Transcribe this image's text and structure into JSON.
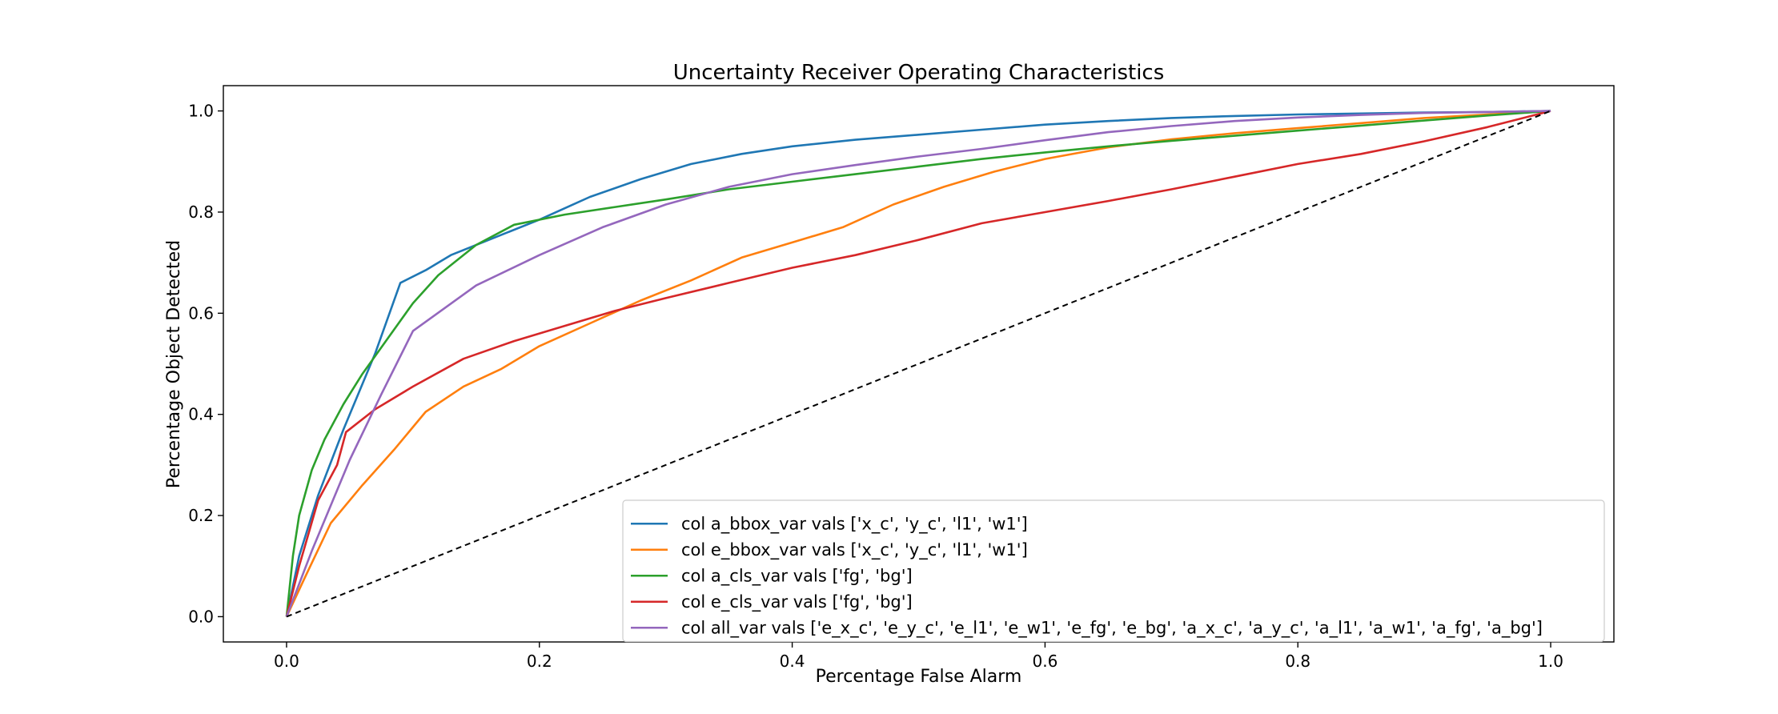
{
  "chart_data": {
    "type": "line",
    "title": "Uncertainty Receiver Operating Characteristics",
    "xlabel": "Percentage False Alarm",
    "ylabel": "Percentage Object Detected",
    "xlim": [
      -0.05,
      1.05
    ],
    "ylim": [
      -0.05,
      1.05
    ],
    "xticks": [
      0.0,
      0.2,
      0.4,
      0.6,
      0.8,
      1.0
    ],
    "yticks": [
      0.0,
      0.2,
      0.4,
      0.6,
      0.8,
      1.0
    ],
    "xtick_labels": [
      "0.0",
      "0.2",
      "0.4",
      "0.6",
      "0.8",
      "1.0"
    ],
    "ytick_labels": [
      "0.0",
      "0.2",
      "0.4",
      "0.6",
      "0.8",
      "1.0"
    ],
    "grid": false,
    "legend_position": "lower-right",
    "series": [
      {
        "name": "col a_bbox_var vals ['x_c', 'y_c', 'l1', 'w1']",
        "color": "#1f77b4",
        "x": [
          0.0,
          0.01,
          0.025,
          0.045,
          0.07,
          0.09,
          0.11,
          0.13,
          0.16,
          0.2,
          0.24,
          0.28,
          0.32,
          0.36,
          0.4,
          0.45,
          0.5,
          0.55,
          0.6,
          0.65,
          0.7,
          0.75,
          0.8,
          0.85,
          0.9,
          0.95,
          1.0
        ],
        "y": [
          0.0,
          0.12,
          0.24,
          0.37,
          0.52,
          0.66,
          0.685,
          0.715,
          0.745,
          0.785,
          0.83,
          0.865,
          0.895,
          0.915,
          0.93,
          0.943,
          0.953,
          0.963,
          0.973,
          0.98,
          0.986,
          0.99,
          0.993,
          0.995,
          0.997,
          0.998,
          1.0
        ]
      },
      {
        "name": "col e_bbox_var vals ['x_c', 'y_c', 'l1', 'w1']",
        "color": "#ff7f0e",
        "x": [
          0.0,
          0.015,
          0.035,
          0.06,
          0.085,
          0.11,
          0.14,
          0.17,
          0.2,
          0.24,
          0.28,
          0.32,
          0.36,
          0.4,
          0.44,
          0.48,
          0.52,
          0.56,
          0.6,
          0.65,
          0.7,
          0.75,
          0.8,
          0.85,
          0.9,
          0.95,
          1.0
        ],
        "y": [
          0.0,
          0.08,
          0.185,
          0.26,
          0.33,
          0.405,
          0.455,
          0.49,
          0.535,
          0.58,
          0.625,
          0.665,
          0.71,
          0.74,
          0.77,
          0.815,
          0.85,
          0.88,
          0.905,
          0.928,
          0.944,
          0.956,
          0.966,
          0.976,
          0.986,
          0.993,
          1.0
        ]
      },
      {
        "name": "col a_cls_var vals ['fg', 'bg']",
        "color": "#2ca02c",
        "x": [
          0.0,
          0.005,
          0.01,
          0.02,
          0.03,
          0.045,
          0.06,
          0.08,
          0.1,
          0.12,
          0.15,
          0.18,
          0.22,
          0.26,
          0.3,
          0.35,
          0.4,
          0.45,
          0.5,
          0.55,
          0.6,
          0.65,
          0.7,
          0.75,
          0.8,
          0.85,
          0.9,
          0.95,
          1.0
        ],
        "y": [
          0.0,
          0.12,
          0.2,
          0.29,
          0.35,
          0.42,
          0.48,
          0.55,
          0.62,
          0.675,
          0.735,
          0.775,
          0.795,
          0.81,
          0.825,
          0.845,
          0.86,
          0.875,
          0.89,
          0.905,
          0.918,
          0.93,
          0.941,
          0.951,
          0.961,
          0.971,
          0.981,
          0.991,
          1.0
        ]
      },
      {
        "name": "col e_cls_var vals ['fg', 'bg']",
        "color": "#d62728",
        "x": [
          0.0,
          0.01,
          0.025,
          0.04,
          0.047,
          0.07,
          0.1,
          0.14,
          0.18,
          0.22,
          0.26,
          0.3,
          0.35,
          0.4,
          0.45,
          0.5,
          0.55,
          0.6,
          0.65,
          0.7,
          0.75,
          0.8,
          0.85,
          0.9,
          0.95,
          1.0
        ],
        "y": [
          0.0,
          0.1,
          0.23,
          0.3,
          0.365,
          0.41,
          0.455,
          0.51,
          0.545,
          0.575,
          0.605,
          0.63,
          0.66,
          0.69,
          0.715,
          0.745,
          0.778,
          0.8,
          0.822,
          0.845,
          0.87,
          0.895,
          0.915,
          0.94,
          0.968,
          1.0
        ]
      },
      {
        "name": "col all_var vals ['e_x_c', 'e_y_c', 'e_l1', 'e_w1', 'e_fg', 'e_bg', 'a_x_c', 'a_y_c', 'a_l1', 'a_w1', 'a_fg', 'a_bg']",
        "color": "#9467bd",
        "x": [
          0.0,
          0.02,
          0.05,
          0.075,
          0.1,
          0.15,
          0.2,
          0.25,
          0.3,
          0.35,
          0.4,
          0.45,
          0.5,
          0.55,
          0.6,
          0.65,
          0.7,
          0.75,
          0.8,
          0.85,
          0.9,
          0.95,
          1.0
        ],
        "y": [
          0.0,
          0.13,
          0.31,
          0.44,
          0.565,
          0.655,
          0.715,
          0.77,
          0.815,
          0.85,
          0.875,
          0.893,
          0.91,
          0.925,
          0.942,
          0.958,
          0.97,
          0.98,
          0.987,
          0.992,
          0.996,
          0.998,
          1.0
        ]
      },
      {
        "name": "",
        "color": "#000000",
        "dashed": true,
        "x": [
          0.0,
          1.0
        ],
        "y": [
          0.0,
          1.0
        ]
      }
    ]
  }
}
